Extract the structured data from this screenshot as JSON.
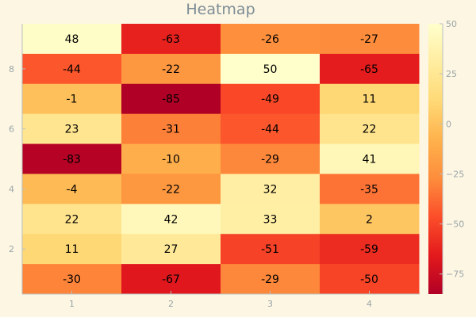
{
  "chart_data": {
    "type": "heatmap",
    "title": "Heatmap",
    "xlabel": "",
    "ylabel": "",
    "x_ticks": [
      "1",
      "2",
      "3",
      "4"
    ],
    "y_ticks": [
      "2",
      "4",
      "6",
      "8"
    ],
    "y_tick_positions": [
      2,
      4,
      6,
      8
    ],
    "rows_top_to_bottom": [
      [
        48,
        -63,
        -26,
        -27
      ],
      [
        -44,
        -22,
        50,
        -65
      ],
      [
        -1,
        -85,
        -49,
        11
      ],
      [
        23,
        -31,
        -44,
        22
      ],
      [
        -83,
        -10,
        -29,
        41
      ],
      [
        -4,
        -22,
        32,
        -35
      ],
      [
        22,
        42,
        33,
        2
      ],
      [
        11,
        27,
        -51,
        -59
      ],
      [
        -30,
        -67,
        -29,
        -50
      ]
    ],
    "color_range": [
      -85,
      50
    ],
    "colorbar_ticks": [
      "50",
      "25",
      "0",
      "−25",
      "−50",
      "−75"
    ],
    "colorbar_tick_values": [
      50,
      25,
      0,
      -25,
      -50,
      -75
    ],
    "colormap": [
      "#b10026",
      "#e31a1c",
      "#fc4e2a",
      "#fd8d3c",
      "#feb24c",
      "#fed976",
      "#ffeda0",
      "#ffffcc"
    ],
    "background": "#fdf6e3",
    "grid": false
  }
}
